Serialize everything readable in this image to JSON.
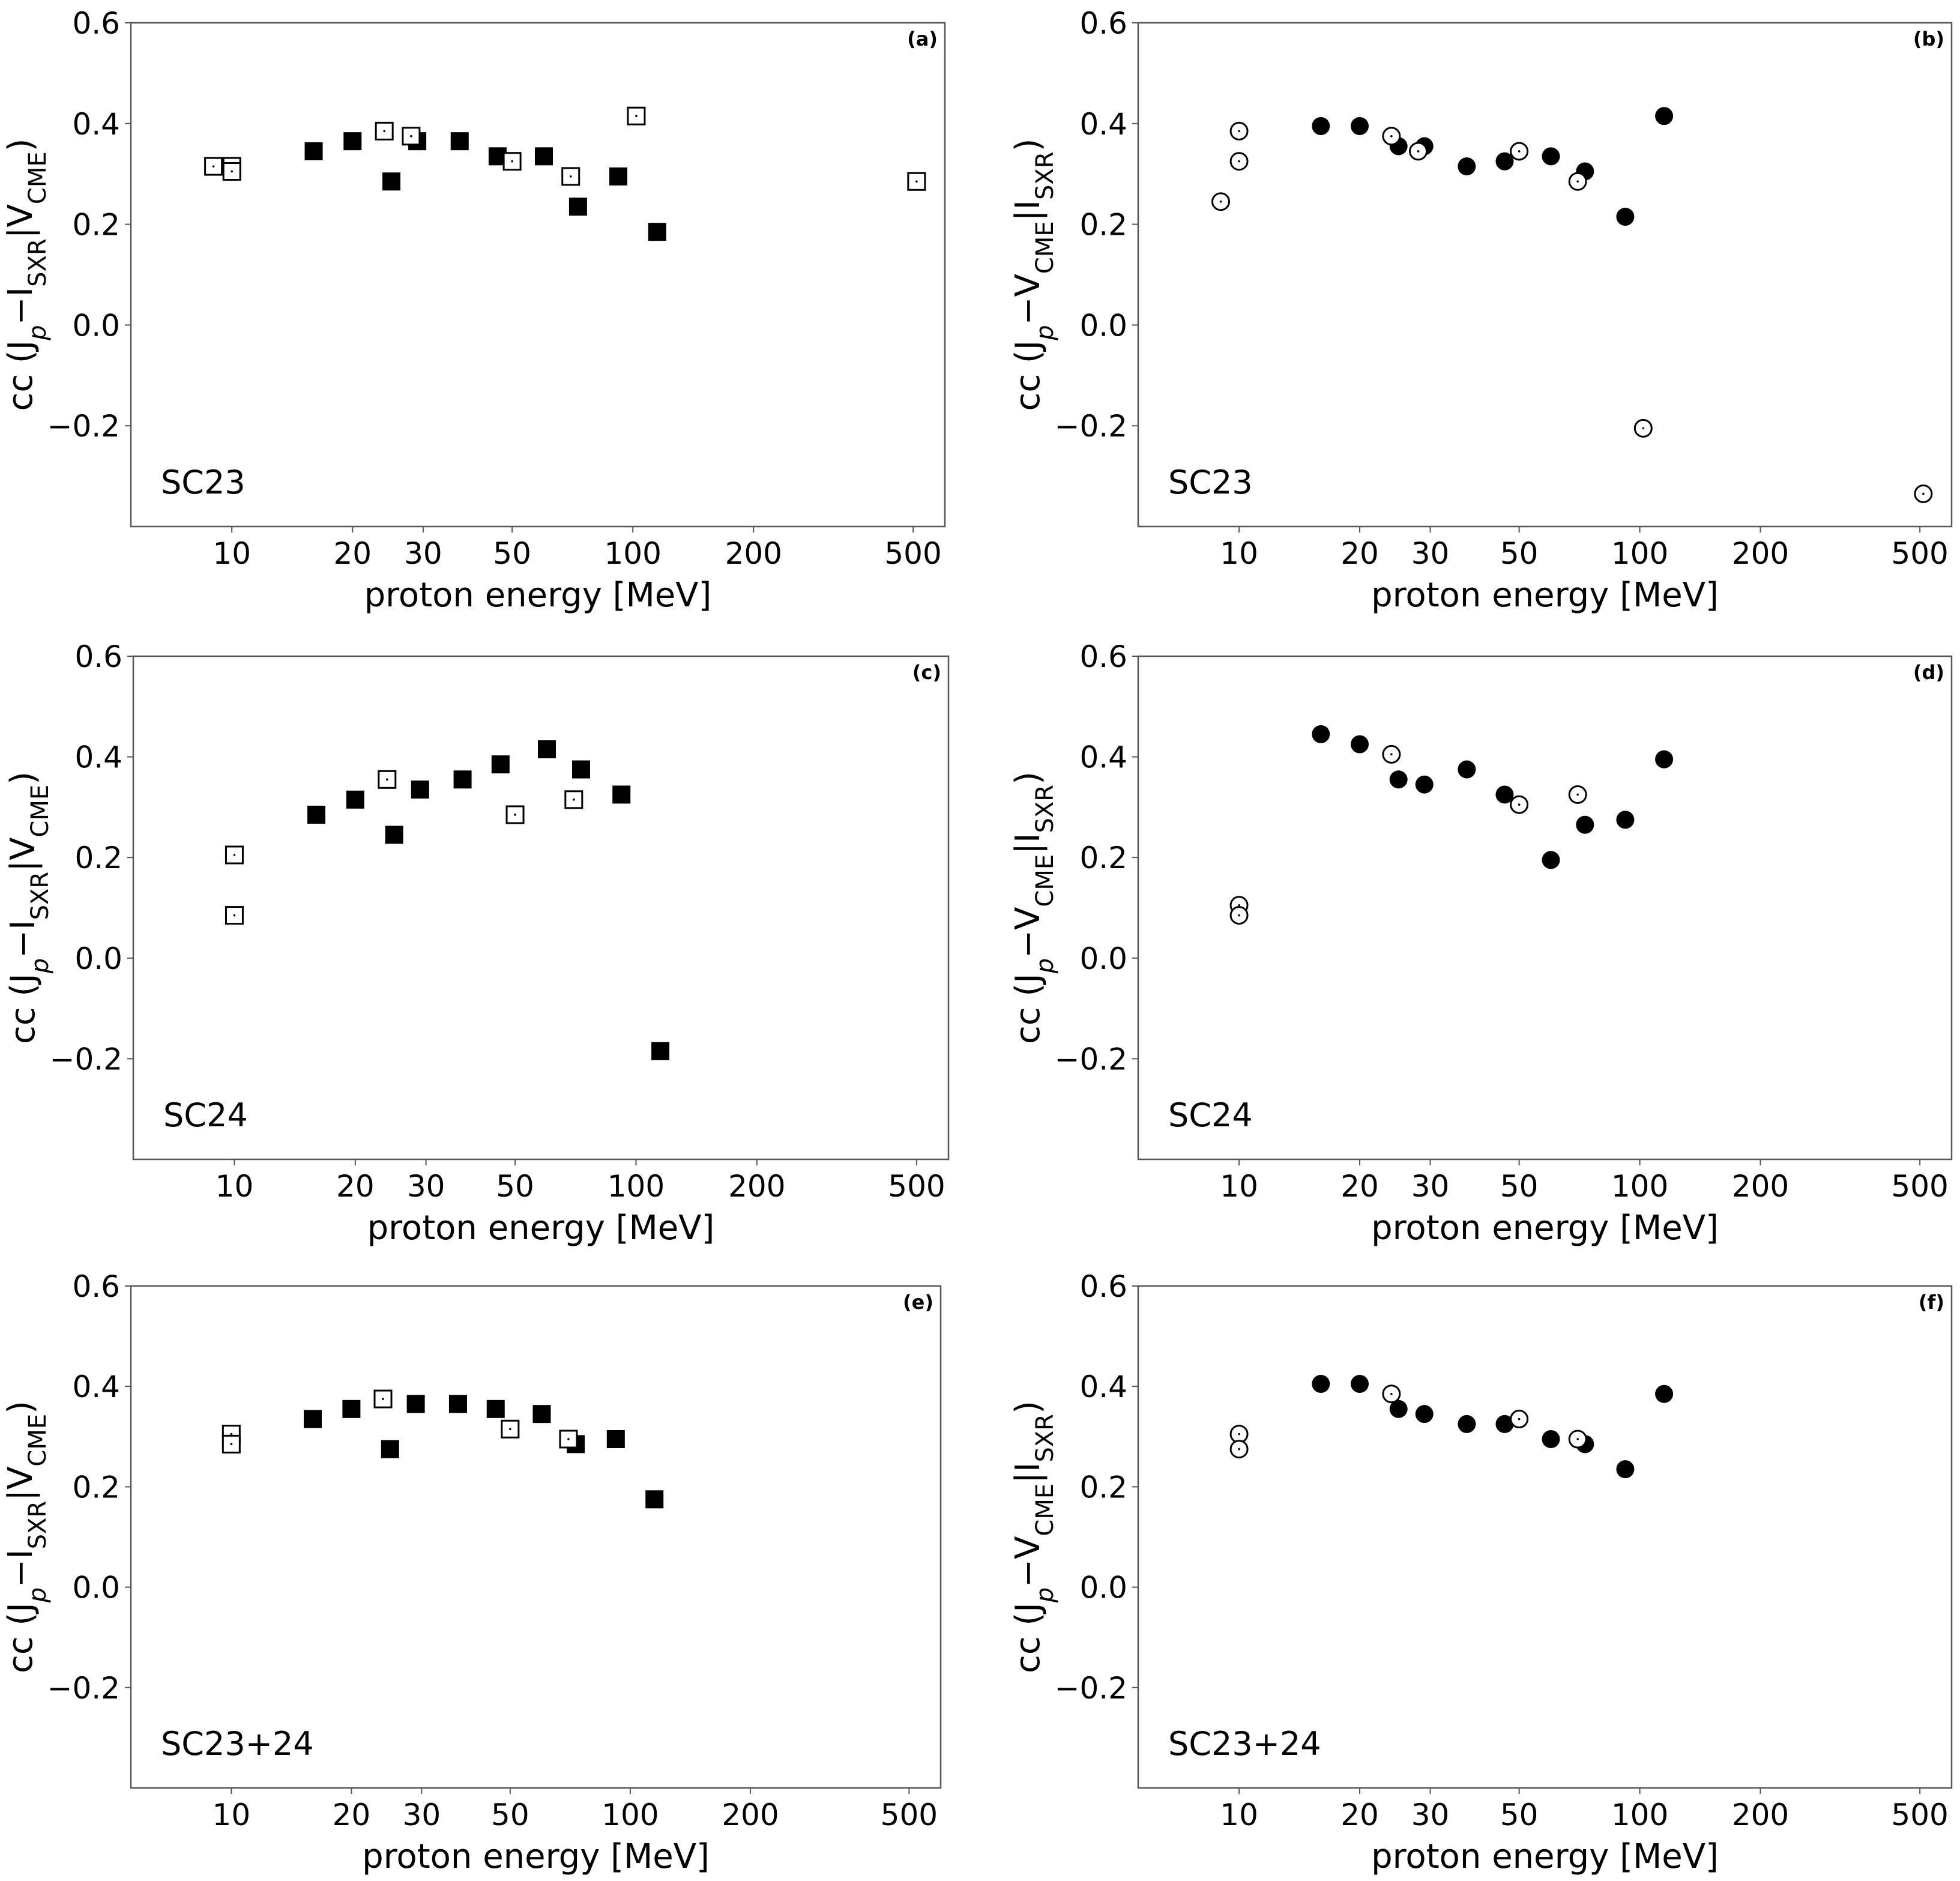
{
  "figure": {
    "x_axis_label": "proton energy [MeV]",
    "x_ticks": [
      10,
      20,
      30,
      50,
      100,
      200,
      500
    ],
    "y_ticks": [
      0.6,
      0.4,
      0.2,
      0.0,
      -0.2
    ],
    "y_tick_labels": [
      "0.6",
      "0.4",
      "0.2",
      "0.0",
      "−0.2"
    ],
    "ylabel_left": {
      "main": "cc (J",
      "sub1": "p",
      "mid": "−I",
      "sub2": "SXR",
      "bar": "|V",
      "sub3": "CME",
      "end": ")"
    },
    "ylabel_right": {
      "main": "cc (J",
      "sub1": "p",
      "mid": "−V",
      "sub2": "CME",
      "bar": "|I",
      "sub3": "SXR",
      "end": ")"
    },
    "colors": {
      "marker": "#000000",
      "frame": "#555555",
      "background": "#ffffff"
    }
  },
  "chart_data": [
    {
      "type": "scatter",
      "panel": "(a)",
      "cycle": "SC23",
      "marker": "square",
      "xscale": "log",
      "xlim": [
        5.6,
        600
      ],
      "ylim": [
        -0.4,
        0.6
      ],
      "series": [
        {
          "name": "filled",
          "x": [
            16,
            20,
            25,
            29,
            37,
            46,
            60,
            73,
            92,
            115
          ],
          "y": [
            0.345,
            0.365,
            0.285,
            0.365,
            0.365,
            0.335,
            0.335,
            0.235,
            0.295,
            0.185
          ]
        },
        {
          "name": "open",
          "x": [
            9,
            10,
            10,
            24,
            28,
            50,
            70,
            102,
            510
          ],
          "y": [
            0.315,
            0.315,
            0.305,
            0.385,
            0.375,
            0.325,
            0.295,
            0.415,
            0.285
          ]
        }
      ]
    },
    {
      "type": "scatter",
      "panel": "(b)",
      "cycle": "SC23",
      "marker": "circle",
      "xscale": "log",
      "xlim": [
        5.6,
        600
      ],
      "ylim": [
        -0.4,
        0.6
      ],
      "series": [
        {
          "name": "filled",
          "x": [
            16,
            20,
            25,
            29,
            37,
            46,
            60,
            73,
            92,
            115
          ],
          "y": [
            0.395,
            0.395,
            0.355,
            0.355,
            0.315,
            0.325,
            0.335,
            0.305,
            0.215,
            0.415
          ]
        },
        {
          "name": "open",
          "x": [
            9,
            10,
            10,
            24,
            28,
            50,
            70,
            102,
            510
          ],
          "y": [
            0.245,
            0.385,
            0.325,
            0.375,
            0.345,
            0.345,
            0.285,
            -0.205,
            -0.335
          ]
        }
      ]
    },
    {
      "type": "scatter",
      "panel": "(c)",
      "cycle": "SC24",
      "marker": "square",
      "xscale": "log",
      "xlim": [
        5.6,
        600
      ],
      "ylim": [
        -0.4,
        0.6
      ],
      "series": [
        {
          "name": "filled",
          "x": [
            16,
            20,
            25,
            29,
            37,
            46,
            60,
            73,
            92,
            115
          ],
          "y": [
            0.285,
            0.315,
            0.245,
            0.335,
            0.355,
            0.385,
            0.415,
            0.375,
            0.325,
            -0.185
          ]
        },
        {
          "name": "open",
          "x": [
            10,
            10,
            24,
            50,
            70
          ],
          "y": [
            0.205,
            0.085,
            0.355,
            0.285,
            0.315
          ]
        }
      ]
    },
    {
      "type": "scatter",
      "panel": "(d)",
      "cycle": "SC24",
      "marker": "circle",
      "xscale": "log",
      "xlim": [
        5.6,
        600
      ],
      "ylim": [
        -0.4,
        0.6
      ],
      "series": [
        {
          "name": "filled",
          "x": [
            16,
            20,
            25,
            29,
            37,
            46,
            60,
            73,
            92,
            115
          ],
          "y": [
            0.445,
            0.425,
            0.355,
            0.345,
            0.375,
            0.325,
            0.195,
            0.265,
            0.275,
            0.395
          ]
        },
        {
          "name": "open",
          "x": [
            10,
            10,
            24,
            50,
            70
          ],
          "y": [
            0.105,
            0.085,
            0.405,
            0.305,
            0.325
          ]
        }
      ]
    },
    {
      "type": "scatter",
      "panel": "(e)",
      "cycle": "SC23+24",
      "marker": "square",
      "xscale": "log",
      "xlim": [
        5.6,
        600
      ],
      "ylim": [
        -0.4,
        0.6
      ],
      "series": [
        {
          "name": "filled",
          "x": [
            16,
            20,
            25,
            29,
            37,
            46,
            60,
            73,
            92,
            115
          ],
          "y": [
            0.335,
            0.355,
            0.275,
            0.365,
            0.365,
            0.355,
            0.345,
            0.285,
            0.295,
            0.175
          ]
        },
        {
          "name": "open",
          "x": [
            10,
            10,
            24,
            50,
            70
          ],
          "y": [
            0.305,
            0.285,
            0.375,
            0.315,
            0.295
          ]
        }
      ]
    },
    {
      "type": "scatter",
      "panel": "(f)",
      "cycle": "SC23+24",
      "marker": "circle",
      "xscale": "log",
      "xlim": [
        5.6,
        600
      ],
      "ylim": [
        -0.4,
        0.6
      ],
      "series": [
        {
          "name": "filled",
          "x": [
            16,
            20,
            25,
            29,
            37,
            46,
            60,
            73,
            92,
            115
          ],
          "y": [
            0.405,
            0.405,
            0.355,
            0.345,
            0.325,
            0.325,
            0.295,
            0.285,
            0.235,
            0.385
          ]
        },
        {
          "name": "open",
          "x": [
            10,
            10,
            24,
            50,
            70
          ],
          "y": [
            0.305,
            0.275,
            0.385,
            0.335,
            0.295
          ]
        }
      ]
    }
  ]
}
